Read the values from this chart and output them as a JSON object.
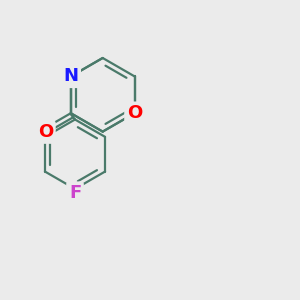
{
  "bg_color": "#ebebeb",
  "bond_color": "#4a7a6a",
  "bond_lw": 1.6,
  "O_color": "#ff0000",
  "N_color": "#1a1aff",
  "F_color": "#cc44cc",
  "font_size": 13,
  "xlim": [
    -2.8,
    2.8
  ],
  "ylim": [
    -3.2,
    2.2
  ],
  "figsize": [
    3.0,
    3.0
  ],
  "dpi": 100
}
